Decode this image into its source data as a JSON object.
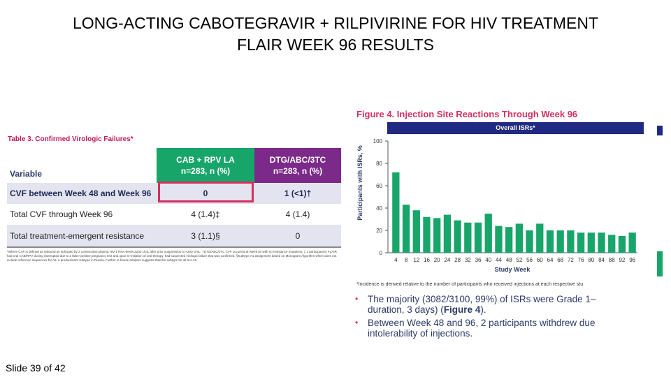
{
  "slide": {
    "title_line1": "LONG-ACTING CABOTEGRAVIR + RILPIVIRINE FOR HIV TREATMENT",
    "title_line2": "FLAIR WEEK 96 RESULTS",
    "slide_number": "Slide 39 of 42"
  },
  "table": {
    "caption": "Table 3. Confirmed Virologic Failures*",
    "header": {
      "variable": "Variable",
      "col1_line1": "CAB + RPV LA",
      "col1_line2": "n=283, n (%)",
      "col2_line1": "DTG/ABC/3TC",
      "col2_line2": "n=283, n (%)"
    },
    "rows": [
      {
        "label": "CVF between Week 48 and Week 96",
        "col1": "0",
        "col2": "1 (<1)†"
      },
      {
        "label": "Total CVF through Week 96",
        "col1": "4 (1.4)‡",
        "col2": "4 (1.4)"
      },
      {
        "label": "Total treatment-emergent resistance",
        "col1": "3 (1.1)§",
        "col2": "0"
      }
    ],
    "footnote": "*Where CVF is defined as rebound as indicated by 2 consecutive plasma HIV-1 RNA levels ≥200 c/mL after prior suppression to <200 c/mL. †DTG/ABC/3TC CVF occurred at Week 84 with no resistance mutations. ‡ 1 participant in FLAIR had oral CAB/RPV dosing interrupted due to a false-positive pregnancy test and upon re-initiation of oral therapy, had suspected virologic failure that was confirmed. §Subtype A1 assignment based on Monogram Algorithm which does not include reference sequences for A6, a predominant subtype in Russia. Further in-house analysis suggests that the subtype for all 3 is A6."
  },
  "figure": {
    "title": "Figure 4. Injection Site Reactions Through Week 96",
    "banner": "Overall ISRs*",
    "note": "*Incidence is derived relative to the number of participants who received injections at each respective stu",
    "bullets": [
      {
        "line1": "The majority (3082/3100, 99%) of ISRs were Grade 1–",
        "line2_pre": "duration, 3 days) (",
        "line2_bold": "Figure 4",
        "line2_post": ")."
      },
      {
        "line1": "Between Week 48 and 96, 2 participants withdrew due",
        "line2": "intolerability of injections."
      }
    ]
  },
  "chart_data": {
    "type": "bar",
    "title": "",
    "xlabel": "Study Week",
    "ylabel": "Participants with ISRs, %",
    "ylim": [
      0,
      100
    ],
    "yticks": [
      0,
      20,
      40,
      60,
      80,
      100
    ],
    "grid": false,
    "categories": [
      "4",
      "8",
      "12",
      "16",
      "20",
      "24",
      "28",
      "32",
      "36",
      "40",
      "44",
      "48",
      "52",
      "56",
      "60",
      "64",
      "68",
      "72",
      "76",
      "80",
      "84",
      "88",
      "92",
      "96"
    ],
    "series": [
      {
        "values": [
          72,
          43,
          38,
          32,
          31,
          34,
          29,
          27,
          27,
          35,
          24,
          23,
          26,
          20,
          26,
          20,
          20,
          20,
          18,
          18,
          18,
          16,
          15,
          18
        ]
      }
    ],
    "colors": {
      "bar": "#18a56a",
      "axis": "#555555"
    }
  }
}
